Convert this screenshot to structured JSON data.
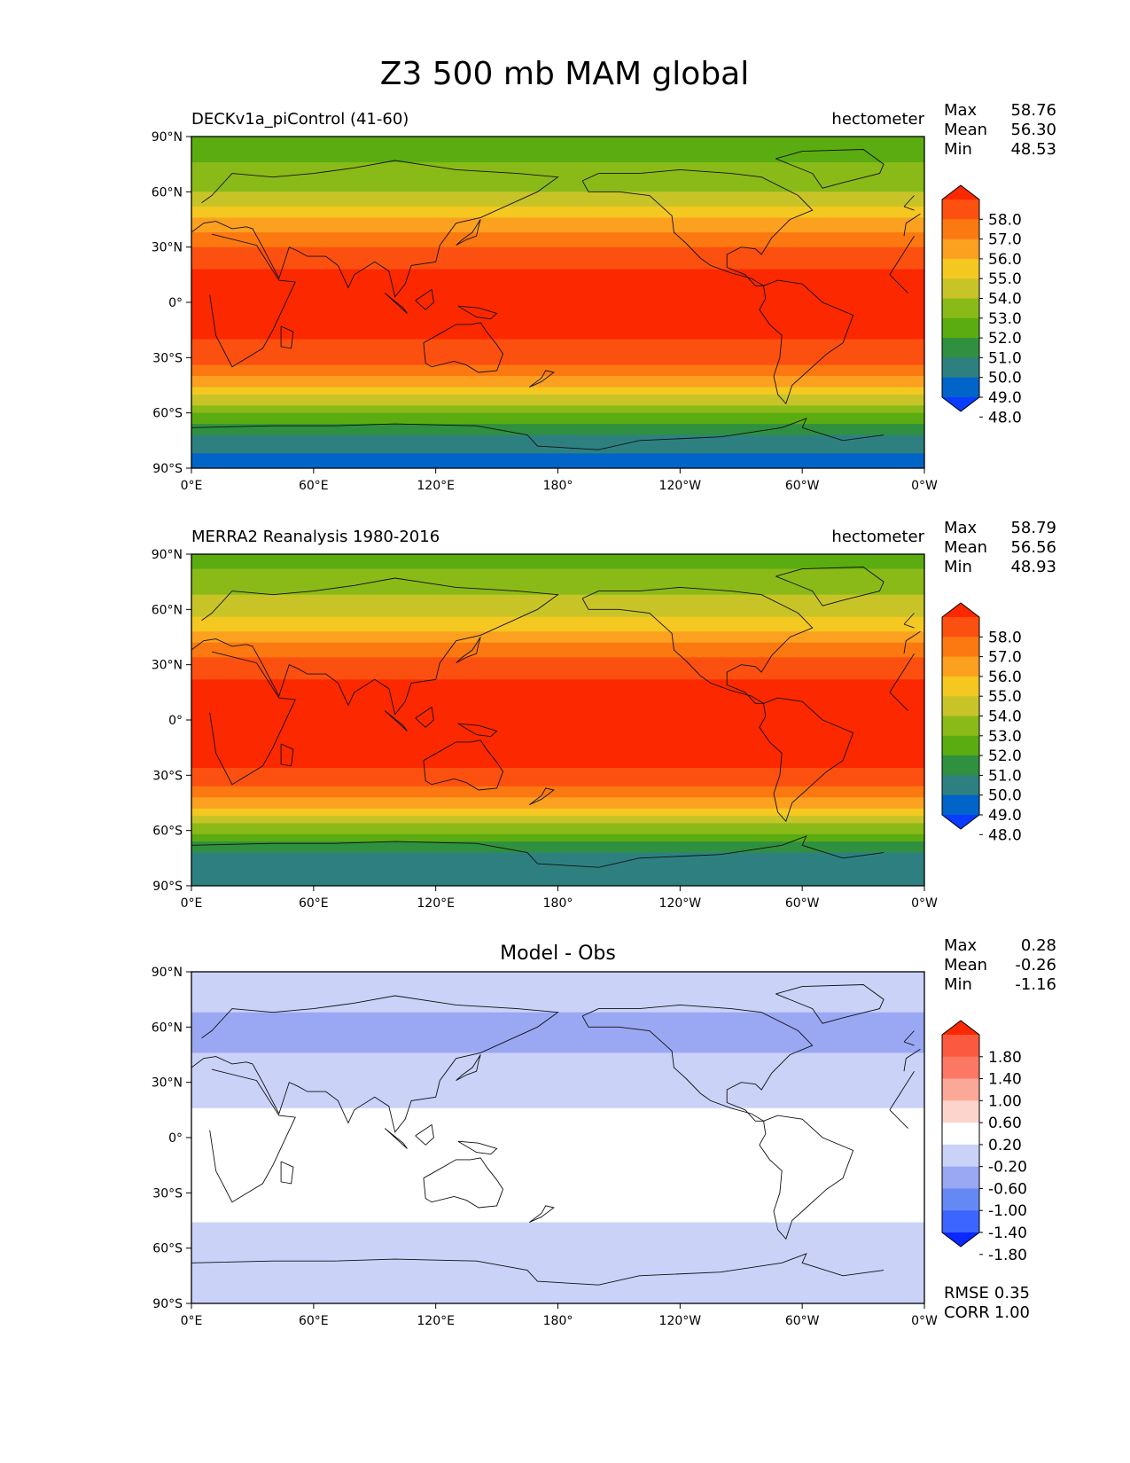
{
  "figure_title": "Z3 500 mb MAM global",
  "lat_ticks": [
    "90°N",
    "60°N",
    "30°N",
    "0°",
    "30°S",
    "60°S",
    "90°S"
  ],
  "lon_ticks": [
    "0°E",
    "60°E",
    "120°E",
    "180°",
    "120°W",
    "60°W",
    "0°W"
  ],
  "stat_labels": {
    "max": "Max",
    "mean": "Mean",
    "min": "Min",
    "rmse": "RMSE",
    "corr": "CORR"
  },
  "panels": [
    {
      "left_title": "DECKv1a_piControl (41-60)",
      "units": "hectometer",
      "center_title": "",
      "stats": {
        "max": "58.76",
        "mean": "56.30",
        "min": "48.53"
      },
      "colorbar_labels": [
        "58.0",
        "57.0",
        "56.0",
        "55.0",
        "54.0",
        "53.0",
        "52.0",
        "51.0",
        "50.0",
        "49.0",
        "48.0"
      ]
    },
    {
      "left_title": "MERRA2 Reanalysis 1980-2016",
      "units": "hectometer",
      "center_title": "",
      "stats": {
        "max": "58.79",
        "mean": "56.56",
        "min": "48.93"
      },
      "colorbar_labels": [
        "58.0",
        "57.0",
        "56.0",
        "55.0",
        "54.0",
        "53.0",
        "52.0",
        "51.0",
        "50.0",
        "49.0",
        "48.0"
      ]
    },
    {
      "left_title": "",
      "units": "",
      "center_title": "Model - Obs",
      "stats": {
        "max": "0.28",
        "mean": "-0.26",
        "min": "-1.16",
        "rmse": "0.35",
        "corr": "1.00"
      },
      "colorbar_labels": [
        "1.80",
        "1.40",
        "1.00",
        "0.60",
        "0.20",
        "-0.20",
        "-0.60",
        "-1.00",
        "-1.40",
        "-1.80"
      ]
    }
  ],
  "chart_data": [
    {
      "type": "heatmap",
      "name": "DECKv1a_piControl (41-60)",
      "units": "hectometer",
      "latitudes": [
        90,
        75,
        60,
        45,
        30,
        15,
        0,
        -15,
        -30,
        -45,
        -60,
        -75,
        -90
      ],
      "zonal_mean_values": [
        51.3,
        52.0,
        53.0,
        55.0,
        57.0,
        58.3,
        58.5,
        58.3,
        57.5,
        55.0,
        52.0,
        49.5,
        48.5
      ],
      "colorbar_levels": [
        48.0,
        49.0,
        50.0,
        51.0,
        52.0,
        53.0,
        54.0,
        55.0,
        56.0,
        57.0,
        58.0
      ],
      "colors": [
        "#0a3cff",
        "#0064c8",
        "#2e8080",
        "#2f9040",
        "#5aac10",
        "#8aba18",
        "#c8c428",
        "#f4c820",
        "#fca020",
        "#fc7810",
        "#fc5010",
        "#fc2800"
      ],
      "xlim": [
        0,
        360
      ],
      "ylim": [
        -90,
        90
      ]
    },
    {
      "type": "heatmap",
      "name": "MERRA2 Reanalysis 1980-2016",
      "units": "hectometer",
      "latitudes": [
        90,
        75,
        60,
        45,
        30,
        15,
        0,
        -15,
        -30,
        -45,
        -60,
        -75,
        -90
      ],
      "zonal_mean_values": [
        51.5,
        52.5,
        53.5,
        55.5,
        57.5,
        58.4,
        58.6,
        58.4,
        57.8,
        55.5,
        52.2,
        49.5,
        49.0
      ],
      "colorbar_levels": [
        48.0,
        49.0,
        50.0,
        51.0,
        52.0,
        53.0,
        54.0,
        55.0,
        56.0,
        57.0,
        58.0
      ],
      "colors": [
        "#0a3cff",
        "#0064c8",
        "#2e8080",
        "#2f9040",
        "#5aac10",
        "#8aba18",
        "#c8c428",
        "#f4c820",
        "#fca020",
        "#fc7810",
        "#fc5010",
        "#fc2800"
      ],
      "xlim": [
        0,
        360
      ],
      "ylim": [
        -90,
        90
      ]
    },
    {
      "type": "heatmap",
      "name": "Model - Obs",
      "latitudes": [
        90,
        75,
        60,
        45,
        30,
        15,
        0,
        -15,
        -30,
        -45,
        -60,
        -75,
        -90
      ],
      "zonal_mean_values": [
        -0.4,
        -0.5,
        -0.7,
        -0.6,
        -0.4,
        -0.2,
        0.0,
        0.0,
        0.0,
        -0.2,
        -0.6,
        -0.3,
        -0.6
      ],
      "colorbar_levels": [
        -1.8,
        -1.4,
        -1.0,
        -0.6,
        -0.2,
        0.2,
        0.6,
        1.0,
        1.4,
        1.8
      ],
      "colors": [
        "#0a28ff",
        "#3c64ff",
        "#6488f4",
        "#9aa8f4",
        "#cad2f8",
        "#ffffff",
        "#fcd4cc",
        "#fca898",
        "#fc7864",
        "#fc5a40",
        "#fc2800"
      ],
      "xlim": [
        0,
        360
      ],
      "ylim": [
        -90,
        90
      ]
    }
  ]
}
